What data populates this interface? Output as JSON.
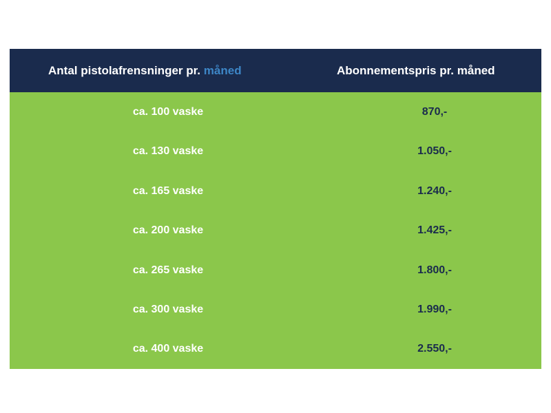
{
  "table": {
    "header": {
      "col1_text": "Antal pistolafrensninger pr.",
      "col1_accent": "måned",
      "col2": "Abonnementspris pr. måned"
    },
    "rows": [
      {
        "wash": "ca. 100 vaske",
        "price": "870,-"
      },
      {
        "wash": "ca. 130 vaske",
        "price": "1.050,-"
      },
      {
        "wash": "ca. 165 vaske",
        "price": "1.240,-"
      },
      {
        "wash": "ca. 200 vaske",
        "price": "1.425,-"
      },
      {
        "wash": "ca. 265 vaske",
        "price": "1.800,-"
      },
      {
        "wash": "ca. 300 vaske",
        "price": "1.990,-"
      },
      {
        "wash": "ca. 400 vaske",
        "price": "2.550,-"
      }
    ]
  },
  "colors": {
    "header_bg": "#1a2b4d",
    "body_bg": "#8bc74b",
    "accent_blue": "#3d86c6",
    "price_text": "#1a2b4d",
    "wash_text": "#ffffff"
  }
}
